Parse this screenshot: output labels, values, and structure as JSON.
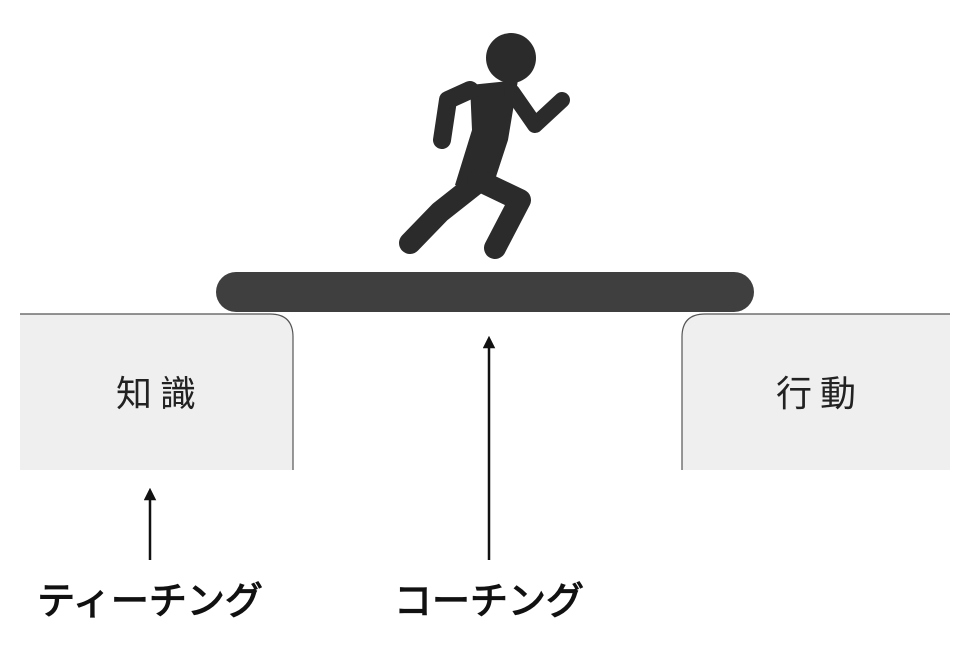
{
  "diagram": {
    "left_block_label": "知識",
    "right_block_label": "行動",
    "left_caption": "ティーチング",
    "center_caption": "コーチング",
    "icons": [
      "running-person-icon"
    ],
    "colors": {
      "block_fill": "#efefef",
      "block_stroke": "#555555",
      "bridge_fill": "#3f3f3f",
      "figure_fill": "#2b2b2b",
      "arrow": "#111111"
    }
  }
}
